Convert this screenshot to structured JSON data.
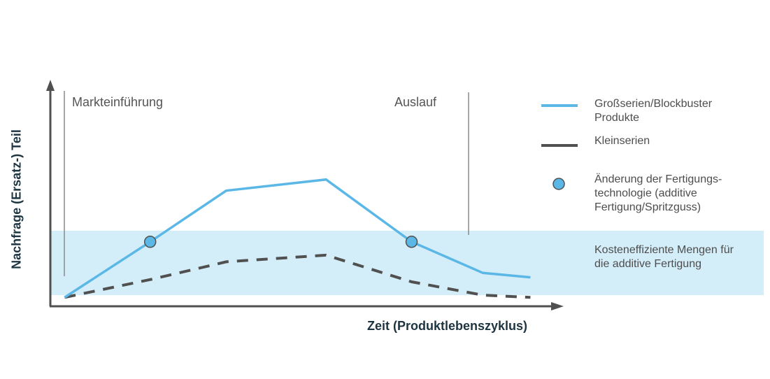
{
  "chart_data": {
    "type": "line",
    "xlabel": "Zeit (Produktlebenszyklus)",
    "ylabel": "Nachfrage (Ersatz-) Teil",
    "x": [
      0,
      1.8,
      3.4,
      5.5,
      7.3,
      8.8,
      9.8
    ],
    "ylim": [
      0,
      10
    ],
    "xlim": [
      -0.3,
      10.5
    ],
    "series": [
      {
        "name": "Großserien/Blockbuster Produkte",
        "style": "solid",
        "color": "#5bb8e6",
        "values": [
          0.4,
          2.9,
          5.2,
          5.7,
          2.9,
          1.5,
          1.3
        ]
      },
      {
        "name": "Kleinserien",
        "style": "dashed",
        "color": "#505050",
        "values": [
          0.4,
          1.2,
          2.0,
          2.3,
          1.1,
          0.5,
          0.4
        ]
      }
    ],
    "markers": [
      {
        "x": 1.8,
        "y": 2.9,
        "series": "Großserien/Blockbuster Produkte"
      },
      {
        "x": 7.3,
        "y": 2.9,
        "series": "Großserien/Blockbuster Produkte"
      }
    ],
    "band": {
      "ymin": 0.5,
      "ymax": 3.4,
      "color": "#d4eef9"
    },
    "phase_markers": [
      {
        "x": 0,
        "label": "Markteinführung"
      },
      {
        "x": 8.8,
        "label": "Auslauf"
      }
    ]
  },
  "legend": [
    {
      "label": "Großserien/Blockbuster\nProdukte",
      "symbol": "solid-line-icon",
      "color": "#5bb8e6"
    },
    {
      "label": "Kleinserien",
      "symbol": "dark-line-icon",
      "color": "#505050"
    },
    {
      "label": "Änderung der Fertigungs-\ntechnologie (additive\nFertigung/Spritzguss)",
      "symbol": "circle-marker-icon",
      "color": "#5bb8e6"
    }
  ],
  "band_label": "Kosteneffiziente Mengen für\ndie additive Fertigung",
  "colors": {
    "axis": "#505050",
    "axis_label": "#1e3440",
    "text": "#4d4d4d"
  }
}
